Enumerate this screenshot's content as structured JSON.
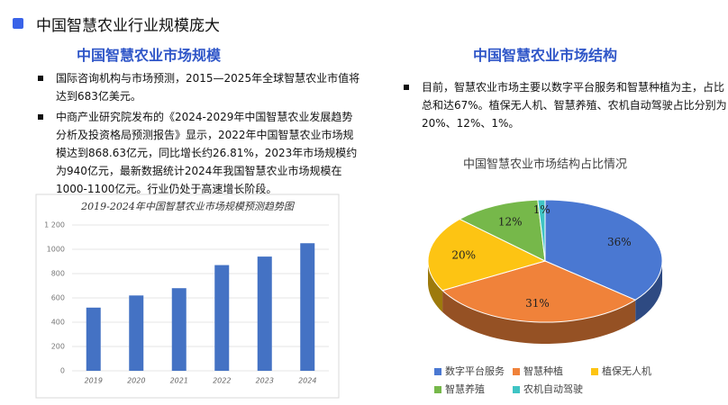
{
  "header": {
    "title": "中国智慧农业行业规模庞大"
  },
  "left": {
    "subtitle": "中国智慧农业市场规模",
    "bullets": [
      "国际咨询机构与市场预测，2015—2025年全球智慧农业市值将达到683亿美元。",
      "中商产业研究院发布的《2024-2029年中国智慧农业发展趋势分析及投资格局预测报告》显示，2022年中国智慧农业市场规模达到868.63亿元，同比增长约26.81%，2023年市场规模约为940亿元，最新数据统计2024年我国智慧农业市场规模在1000-1100亿元。行业仍处于高速增长阶段。"
    ]
  },
  "right": {
    "subtitle": "中国智慧农业市场结构",
    "bullets": [
      "目前，智慧农业市场主要以数字平台服务和智慧种植为主，占比总和达67%。植保无人机、智慧养殖、农机自动驾驶占比分别为20%、12%、1%。"
    ]
  },
  "chart_data": [
    {
      "type": "bar",
      "title": "2019-2024年中国智慧农业市场规模预测趋势图",
      "categories": [
        "2019",
        "2020",
        "2021",
        "2022",
        "2023",
        "2024"
      ],
      "values": [
        520,
        620,
        680,
        870,
        940,
        1050
      ],
      "color": "#4472c4",
      "ylim": [
        0,
        1200
      ],
      "yticks": [
        0,
        200,
        400,
        600,
        800,
        1000,
        {
          "value": 1200,
          "label": "1 200"
        }
      ],
      "grid": true
    },
    {
      "type": "pie",
      "title": "中国智慧农业市场结构占比情况",
      "categories": [
        "数字平台服务",
        "智慧种植",
        "植保无人机",
        "智慧养殖",
        "农机自动驾驶"
      ],
      "values": [
        36,
        31,
        20,
        12,
        1
      ],
      "value_labels": [
        "36%",
        "31%",
        "20%",
        "12%",
        "1%"
      ],
      "colors": [
        "#4a78d2",
        "#f0823a",
        "#fdc413",
        "#76b84a",
        "#3fc4c4"
      ]
    }
  ]
}
